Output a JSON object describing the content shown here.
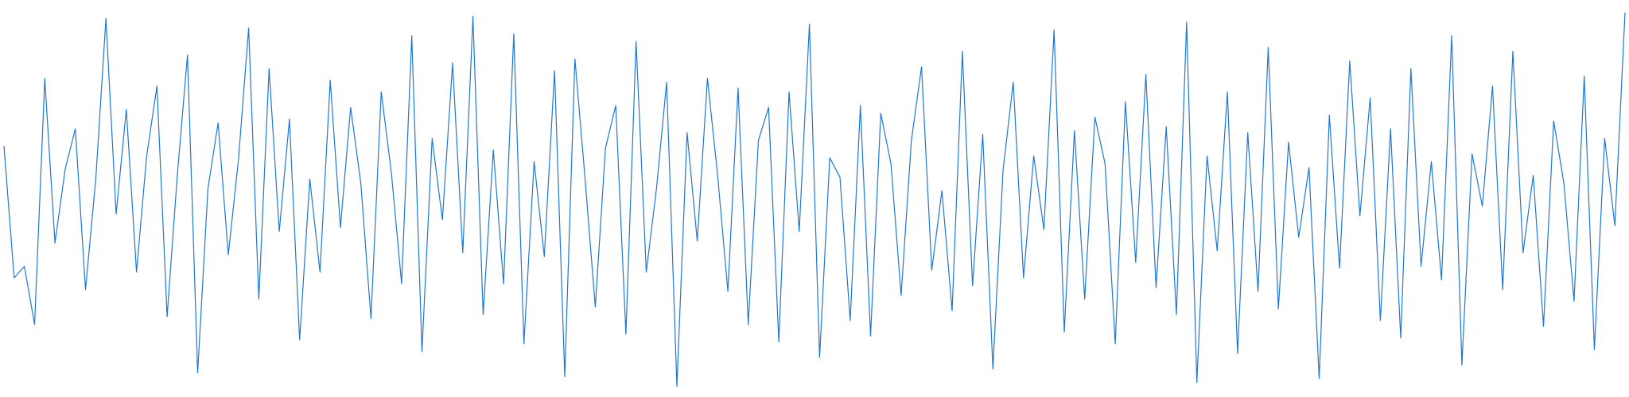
{
  "chart_data": {
    "type": "line",
    "title": "",
    "xlabel": "",
    "ylabel": "",
    "axes_visible": false,
    "grid": false,
    "legend": "none",
    "line_color": "#1f77d4",
    "ylim": [
      -1.0,
      1.0
    ],
    "series": [
      {
        "name": "",
        "values": [
          0.27,
          -0.41,
          -0.35,
          -0.65,
          0.62,
          -0.23,
          0.15,
          0.36,
          -0.47,
          0.1,
          0.93,
          -0.08,
          0.46,
          -0.38,
          0.22,
          0.58,
          -0.61,
          0.12,
          0.74,
          -0.9,
          0.05,
          0.39,
          -0.29,
          0.2,
          0.88,
          -0.52,
          0.67,
          -0.17,
          0.41,
          -0.73,
          0.1,
          -0.38,
          0.61,
          -0.15,
          0.47,
          0.08,
          -0.62,
          0.55,
          0.13,
          -0.44,
          0.84,
          -0.79,
          0.31,
          -0.11,
          0.7,
          -0.28,
          0.94,
          -0.6,
          0.25,
          -0.44,
          0.85,
          -0.75,
          0.19,
          -0.3,
          0.66,
          -0.92,
          0.72,
          0.1,
          -0.56,
          0.26,
          0.48,
          -0.7,
          0.81,
          -0.38,
          0.05,
          0.6,
          -0.97,
          0.34,
          -0.22,
          0.62,
          0.12,
          -0.48,
          0.57,
          -0.65,
          0.3,
          0.47,
          -0.74,
          0.55,
          -0.17,
          0.9,
          -0.82,
          0.21,
          0.11,
          -0.63,
          0.48,
          -0.71,
          0.44,
          0.18,
          -0.5,
          0.3,
          0.68,
          -0.37,
          0.04,
          -0.58,
          0.76,
          -0.45,
          0.33,
          -0.88,
          0.15,
          0.6,
          -0.41,
          0.22,
          -0.16,
          0.87,
          -0.69,
          0.35,
          -0.52,
          0.42,
          0.18,
          -0.75,
          0.5,
          -0.33,
          0.64,
          -0.46,
          0.37,
          -0.6,
          0.91,
          -0.95,
          0.22,
          -0.27,
          0.55,
          -0.8,
          0.34,
          -0.48,
          0.78,
          -0.57,
          0.29,
          -0.2,
          0.16,
          -0.93,
          0.43,
          -0.36,
          0.71,
          -0.09,
          0.52,
          -0.63,
          0.36,
          -0.72,
          0.67,
          -0.35,
          0.19,
          -0.42,
          0.84,
          -0.86,
          0.23,
          -0.04,
          0.58,
          -0.47,
          0.76,
          -0.28,
          0.12,
          -0.66,
          0.4,
          0.08,
          -0.53,
          0.63,
          -0.78,
          0.31,
          -0.14,
          0.96
        ]
      }
    ]
  }
}
